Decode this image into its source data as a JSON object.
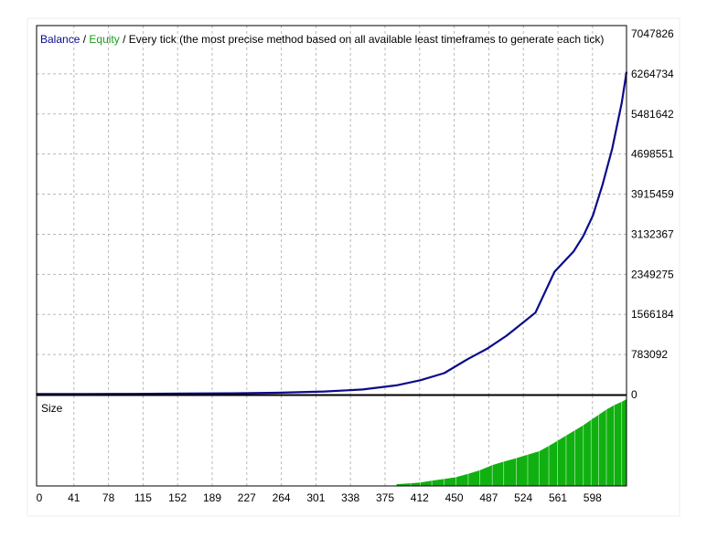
{
  "title": {
    "balance": "Balance",
    "sep1": " / ",
    "equity": "Equity",
    "rest": " / Every tick (the most precise method based on all available least timeframes to generate each tick)"
  },
  "colors": {
    "balance": "#0b0b8c",
    "equity": "#1a9e1a",
    "size_fill": "#10b010",
    "grid": "#b8b8b8",
    "frame": "#000000"
  },
  "chart_data": [
    {
      "type": "line",
      "series": [
        {
          "name": "Balance",
          "x": [
            0,
            50,
            100,
            150,
            200,
            250,
            300,
            340,
            375,
            400,
            425,
            450,
            470,
            490,
            500,
            520,
            540,
            560,
            570,
            580,
            590,
            600,
            610,
            615
          ],
          "values": [
            10000,
            12000,
            15000,
            20000,
            25000,
            35000,
            60000,
            100000,
            180000,
            280000,
            420000,
            700000,
            900000,
            1150000,
            1300000,
            1600000,
            2400000,
            2800000,
            3100000,
            3500000,
            4100000,
            4800000,
            5700000,
            6300000
          ]
        }
      ],
      "xlim": [
        0,
        615
      ],
      "ylim": [
        0,
        7047826
      ],
      "y_ticks": [
        "0",
        "783092",
        "1566184",
        "2349275",
        "3132367",
        "3915459",
        "4698551",
        "5481642",
        "6264734",
        "7047826"
      ],
      "grid": true
    },
    {
      "type": "bar",
      "title": "Size",
      "x": [
        375,
        390,
        400,
        412,
        425,
        437,
        450,
        462,
        475,
        487,
        500,
        512,
        524,
        534,
        543,
        552,
        561,
        570,
        578,
        586,
        594,
        602,
        610,
        615
      ],
      "values": [
        0.02,
        0.03,
        0.04,
        0.06,
        0.08,
        0.1,
        0.14,
        0.18,
        0.24,
        0.28,
        0.32,
        0.36,
        0.4,
        0.46,
        0.52,
        0.58,
        0.64,
        0.7,
        0.76,
        0.82,
        0.88,
        0.93,
        0.97,
        1.0
      ],
      "xlim": [
        0,
        615
      ],
      "x_ticks": [
        "0",
        "41",
        "78",
        "115",
        "152",
        "189",
        "227",
        "264",
        "301",
        "338",
        "375",
        "412",
        "450",
        "487",
        "524",
        "561",
        "598"
      ],
      "grid": true
    }
  ]
}
